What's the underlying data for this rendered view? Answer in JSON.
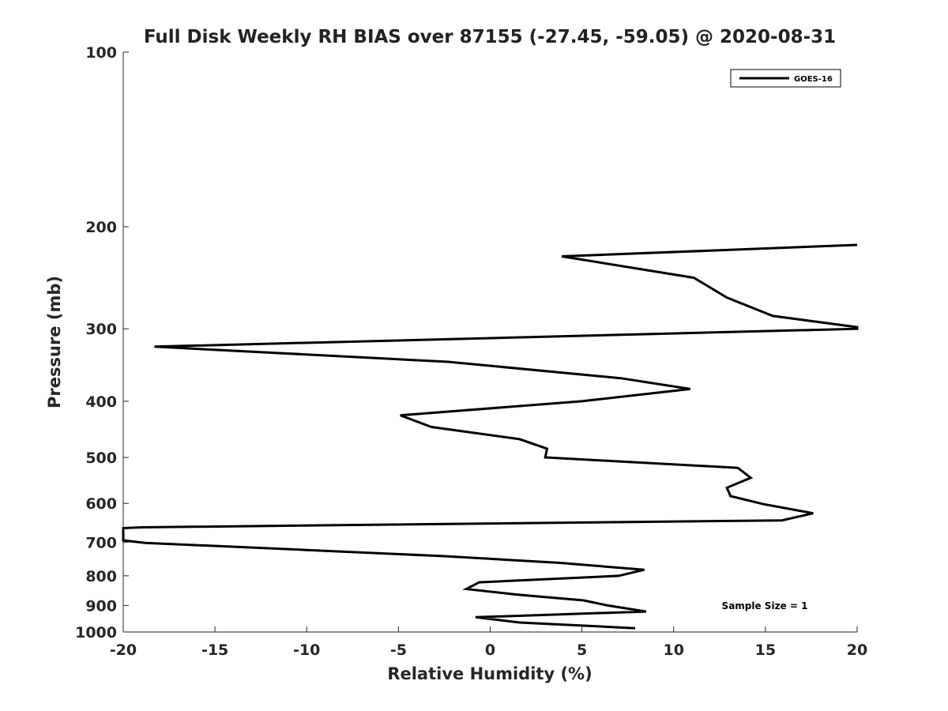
{
  "chart_data": {
    "type": "line",
    "title": "Full Disk Weekly RH BIAS over 87155 (-27.45, -59.05) @ 2020-08-31",
    "xlabel": "Relative Humidity (%)",
    "ylabel": "Pressure (mb)",
    "xlim": [
      -20,
      20
    ],
    "ylim": [
      100,
      1000
    ],
    "y_scale": "log",
    "y_reversed": true,
    "grid": false,
    "legend_position": "top-right",
    "x_ticks": [
      -20,
      -15,
      -10,
      -5,
      0,
      5,
      10,
      15,
      20
    ],
    "y_ticks": [
      100,
      200,
      300,
      400,
      500,
      600,
      700,
      800,
      900,
      1000
    ],
    "series": [
      {
        "name": "GOES-16",
        "color": "#000000",
        "points": [
          {
            "x": 20,
            "y": 215
          },
          {
            "x": 3.9,
            "y": 225
          },
          {
            "x": 11.1,
            "y": 245
          },
          {
            "x": 12.9,
            "y": 265
          },
          {
            "x": 15.4,
            "y": 285
          },
          {
            "x": 20,
            "y": 298
          },
          {
            "x": 20,
            "y": 300
          },
          {
            "x": -18.3,
            "y": 322
          },
          {
            "x": -2.3,
            "y": 342
          },
          {
            "x": 7.1,
            "y": 365
          },
          {
            "x": 10.9,
            "y": 381
          },
          {
            "x": 5.0,
            "y": 400
          },
          {
            "x": -4.9,
            "y": 423
          },
          {
            "x": -3.2,
            "y": 443
          },
          {
            "x": 1.6,
            "y": 465
          },
          {
            "x": 3.1,
            "y": 483
          },
          {
            "x": 3.0,
            "y": 500
          },
          {
            "x": 13.5,
            "y": 521
          },
          {
            "x": 14.2,
            "y": 542
          },
          {
            "x": 12.9,
            "y": 564
          },
          {
            "x": 13.1,
            "y": 583
          },
          {
            "x": 14.9,
            "y": 602
          },
          {
            "x": 17.6,
            "y": 624
          },
          {
            "x": 15.9,
            "y": 642
          },
          {
            "x": -19,
            "y": 660
          },
          {
            "x": -20,
            "y": 662
          },
          {
            "x": -20,
            "y": 695
          },
          {
            "x": -18.8,
            "y": 702
          },
          {
            "x": -10.0,
            "y": 722
          },
          {
            "x": -2.5,
            "y": 740
          },
          {
            "x": 3.8,
            "y": 760
          },
          {
            "x": 8.4,
            "y": 781
          },
          {
            "x": 7.0,
            "y": 800
          },
          {
            "x": -0.6,
            "y": 821
          },
          {
            "x": -1.3,
            "y": 843
          },
          {
            "x": 1.5,
            "y": 862
          },
          {
            "x": 5.1,
            "y": 882
          },
          {
            "x": 6.4,
            "y": 900
          },
          {
            "x": 8.5,
            "y": 922
          },
          {
            "x": -0.8,
            "y": 943
          },
          {
            "x": 1.6,
            "y": 963
          },
          {
            "x": 7.9,
            "y": 985
          }
        ]
      }
    ],
    "annotation": "Sample Size = 1"
  }
}
